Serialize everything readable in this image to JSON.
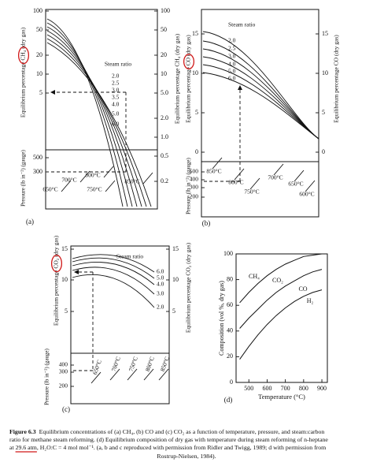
{
  "panels": {
    "a": {
      "label": "(a)",
      "left_axis_label": "Equilibrium percentage CH₄ (dry gas)",
      "pressure_axis_label": "Pressure (lb in⁻²) (gauge)",
      "right_axis_label": "Equilibrium percentage CH₄ (dry gas)",
      "left_ticks": [
        "100",
        "50",
        "20",
        "10",
        "5"
      ],
      "right_ticks": [
        "100",
        "50",
        "20",
        "10",
        "5.0",
        "2.0",
        "1.0",
        "0.5",
        "0.2"
      ],
      "pressure_ticks": [
        "500",
        "300"
      ],
      "steam_ratio_title": "Steam ratio",
      "steam_ratios": [
        "2.0",
        "2.5",
        "3.0",
        "3.5",
        "4.0",
        "5.0",
        "6.0"
      ],
      "temperatures": [
        "650°C",
        "700°C",
        "750°C",
        "800°C",
        "850°C"
      ]
    },
    "b": {
      "label": "(b)",
      "left_axis_label": "Equilibrium percentage CO (dry gas)",
      "pressure_axis_label": "Pressure (lb in⁻²) (gauge)",
      "right_axis_label": "Equilibrium percentage CO (dry gas)",
      "left_ticks": [
        "15",
        "10",
        "5",
        "0"
      ],
      "right_ticks": [
        "15",
        "10",
        "5",
        "0"
      ],
      "pressure_ticks": [
        "500",
        "400",
        "300",
        "200"
      ],
      "steam_ratio_title": "Steam ratio",
      "steam_ratios": [
        "2.0",
        "2.5",
        "3.0",
        "4.0",
        "5.0",
        "6.0"
      ],
      "temperatures": [
        "850°C",
        "800°C",
        "750°C",
        "700°C",
        "650°C",
        "600°C"
      ]
    },
    "c": {
      "label": "(c)",
      "left_axis_label": "Equilibrium percentage CO₂ (dry gas)",
      "pressure_axis_label": "Pressure (lb in⁻²) (gauge)",
      "right_axis_label": "Equilibrium percentage CO₂ (dry gas)",
      "left_ticks": [
        "15",
        "10",
        "5"
      ],
      "right_ticks": [
        "15",
        "10",
        "5"
      ],
      "pressure_ticks": [
        "400",
        "300",
        "200"
      ],
      "steam_ratio_title": "Steam ratio",
      "steam_ratios": [
        "6.0",
        "5.0",
        "4.0",
        "3.0",
        "2.0"
      ],
      "temperatures": [
        "650°C",
        "700°C",
        "750°C",
        "800°C",
        "850°C"
      ]
    }
  },
  "chart_data": {
    "type": "stacked_line",
    "label": "(d)",
    "x_label": "Temperature (°C)",
    "y_label": "Composition (vol %, dry gas)",
    "x": [
      450,
      500,
      550,
      600,
      650,
      700,
      750,
      800,
      850,
      900
    ],
    "series": [
      {
        "name": "H₂",
        "color": "#111111",
        "values": [
          18,
          28,
          37,
          45,
          52,
          58,
          63,
          67,
          70,
          72
        ]
      },
      {
        "name": "CO",
        "color": "#111111",
        "values": [
          24,
          22,
          20,
          19,
          18,
          17,
          16,
          16,
          16,
          16
        ]
      },
      {
        "name": "CO₂",
        "color": "#111111",
        "values": [
          20,
          20,
          20,
          19,
          18,
          17,
          16,
          15,
          13,
          12
        ]
      },
      {
        "name": "CH₄",
        "color": "#111111",
        "values": [
          38,
          30,
          23,
          17,
          12,
          8,
          5,
          2,
          1,
          0
        ]
      }
    ],
    "xlim": [
      430,
      930
    ],
    "ylim": [
      0,
      100
    ],
    "xticks": [
      500,
      600,
      700,
      800,
      900
    ],
    "yticks": [
      0,
      20,
      40,
      60,
      80,
      100
    ]
  },
  "caption": {
    "label": "Figure 6.3",
    "lines": [
      "Equilibrium concentrations of (a) CH₄, (b) CO and (c) CO₂ as a function of temperature, pressure, and steam:carbon",
      "ratio for methane steam reforming. (d) Equilibrium composition of dry gas with temperature during steam reforming of n-heptane",
      "at 29.6 atm, H₂O:C = 4 mol mol⁻¹. (a, b and c reproduced with permission from Ridler and Twigg, 1989; d with permission from",
      "Rostrup-Nielsen, 1984)."
    ]
  }
}
